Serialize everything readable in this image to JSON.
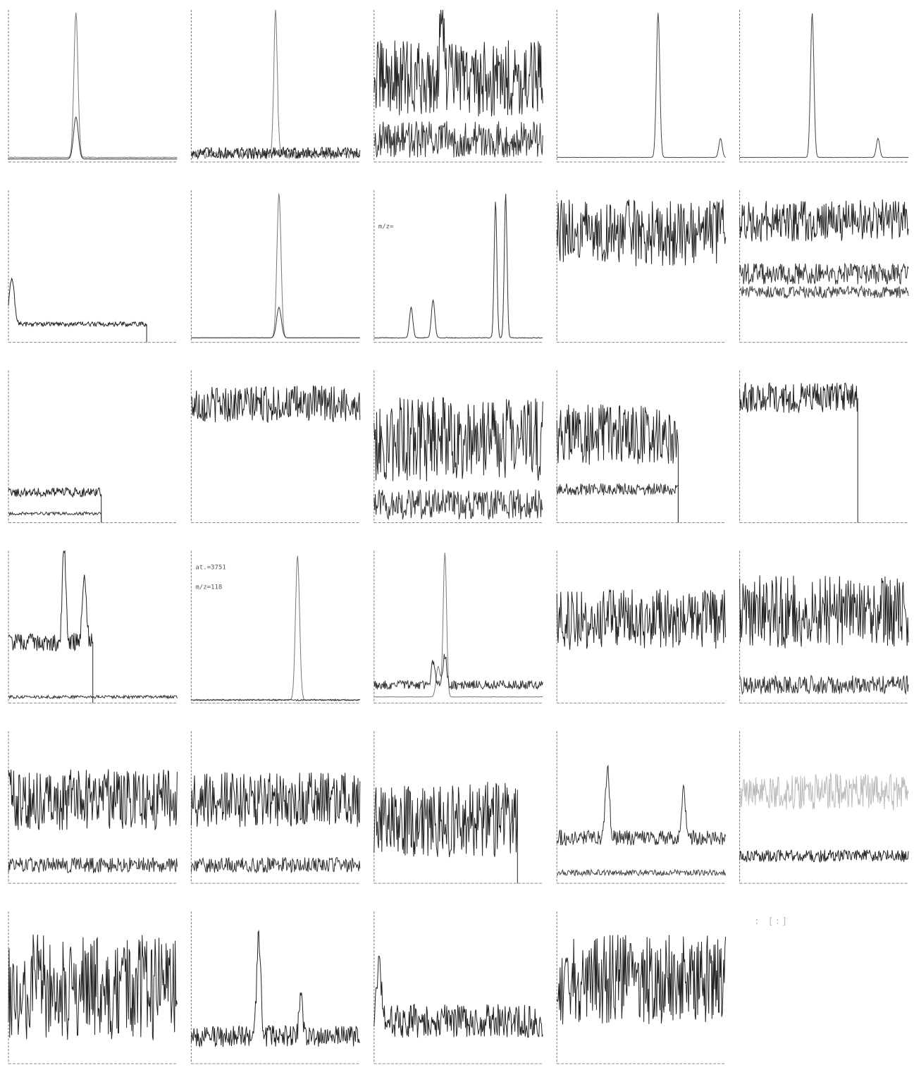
{
  "page": {
    "title": "",
    "stray_marks": ": [:]"
  },
  "chart_data": [
    {
      "type": "line",
      "labels": [
        "",
        "",
        "",
        ""
      ],
      "xticks": [
        "",
        "",
        "",
        ""
      ],
      "series": [
        {
          "kind": "peak",
          "peaks": [
            [
              0.4,
              190,
              0.012
            ]
          ],
          "noise": 0.5,
          "base": 0.03,
          "color": "#777"
        },
        {
          "kind": "peak",
          "peaks": [
            [
              0.4,
              55,
              0.014
            ]
          ],
          "noise": 0.2,
          "base": 0.02,
          "color": "#333"
        }
      ]
    },
    {
      "type": "line",
      "labels": [
        "",
        "",
        "",
        ""
      ],
      "xticks": [
        "",
        "",
        "",
        ""
      ],
      "series": [
        {
          "kind": "peak",
          "peaks": [
            [
              0.5,
              190,
              0.01
            ]
          ],
          "noise": 6,
          "base": 0.05,
          "color": "#777"
        },
        {
          "kind": "noise",
          "level": 0.06,
          "noise": 0.04,
          "color": "#222"
        }
      ]
    },
    {
      "type": "line",
      "labels": [
        "",
        "",
        "",
        ""
      ],
      "xticks": [
        "",
        "",
        "",
        ""
      ],
      "series": [
        {
          "kind": "noise",
          "level": 0.55,
          "noise": 0.25,
          "color": "#222",
          "peaks": [
            [
              0.4,
              120,
              0.01
            ]
          ]
        },
        {
          "kind": "noise",
          "level": 0.15,
          "noise": 0.12,
          "color": "#333"
        }
      ]
    },
    {
      "type": "line",
      "labels": [
        "",
        "",
        "",
        ""
      ],
      "xticks": [
        "",
        "",
        "",
        ""
      ],
      "series": [
        {
          "kind": "peak",
          "peaks": [
            [
              0.6,
              190,
              0.01
            ],
            [
              0.97,
              25,
              0.01
            ]
          ],
          "noise": 0.2,
          "base": 0.03,
          "color": "#444"
        }
      ]
    },
    {
      "type": "line",
      "labels": [
        "",
        "",
        "",
        ""
      ],
      "xticks": [
        "",
        "",
        "",
        ""
      ],
      "series": [
        {
          "kind": "peak",
          "peaks": [
            [
              0.43,
              190,
              0.01
            ],
            [
              0.82,
              25,
              0.01
            ]
          ],
          "noise": 0.2,
          "base": 0.03,
          "color": "#444"
        }
      ]
    },
    {
      "type": "line",
      "labels": [
        "",
        "",
        "",
        ""
      ],
      "xticks": [
        "",
        "",
        "",
        ""
      ],
      "cut": 0.82,
      "series": [
        {
          "kind": "peak",
          "peaks": [
            [
              0.02,
              60,
              0.015
            ]
          ],
          "noise": 3,
          "base": 0.12,
          "color": "#222"
        }
      ]
    },
    {
      "type": "line",
      "labels": [
        "",
        "",
        "",
        ""
      ],
      "xticks": [
        "",
        "",
        "",
        ""
      ],
      "series": [
        {
          "kind": "peak",
          "peaks": [
            [
              0.52,
              190,
              0.012
            ]
          ],
          "noise": 0.2,
          "base": 0.03,
          "color": "#777"
        },
        {
          "kind": "peak",
          "peaks": [
            [
              0.52,
              40,
              0.014
            ]
          ],
          "noise": 0.2,
          "base": 0.03,
          "color": "#333"
        }
      ]
    },
    {
      "type": "line",
      "labels": [
        "",
        "",
        "",
        "m/z= "
      ],
      "xticks": [
        "",
        "",
        "",
        ""
      ],
      "series": [
        {
          "kind": "peak",
          "peaks": [
            [
              0.22,
              40,
              0.01
            ],
            [
              0.35,
              50,
              0.01
            ],
            [
              0.72,
              180,
              0.008
            ],
            [
              0.78,
              190,
              0.008
            ]
          ],
          "noise": 0.5,
          "base": 0.03,
          "color": "#333"
        }
      ]
    },
    {
      "type": "line",
      "labels": [
        "",
        "",
        "",
        ""
      ],
      "xticks": [
        "",
        "",
        "",
        ""
      ],
      "series": [
        {
          "kind": "noise",
          "level": 0.72,
          "noise": 0.22,
          "color": "#222"
        }
      ]
    },
    {
      "type": "line",
      "labels": [
        "",
        "",
        "",
        ""
      ],
      "xticks": [
        "",
        "",
        "",
        ""
      ],
      "series": [
        {
          "kind": "noise",
          "level": 0.8,
          "noise": 0.14,
          "color": "#222"
        },
        {
          "kind": "noise",
          "level": 0.45,
          "noise": 0.07,
          "color": "#333"
        },
        {
          "kind": "noise",
          "level": 0.33,
          "noise": 0.04,
          "color": "#444"
        }
      ]
    },
    {
      "type": "line",
      "labels": [
        "",
        "",
        "",
        ""
      ],
      "xticks": [
        "",
        "",
        "",
        ""
      ],
      "cut": 0.55,
      "series": [
        {
          "kind": "noise",
          "level": 0.2,
          "noise": 0.03,
          "color": "#222"
        },
        {
          "kind": "noise",
          "level": 0.06,
          "noise": 0.01,
          "color": "#333"
        }
      ]
    },
    {
      "type": "line",
      "labels": [
        "",
        "",
        "",
        ""
      ],
      "xticks": [
        "",
        "",
        "",
        ""
      ],
      "series": [
        {
          "kind": "noise",
          "level": 0.78,
          "noise": 0.12,
          "color": "#222"
        }
      ]
    },
    {
      "type": "line",
      "labels": [
        "",
        "",
        "",
        ""
      ],
      "xticks": [
        "",
        "",
        "",
        ""
      ],
      "series": [
        {
          "kind": "noise",
          "level": 0.55,
          "noise": 0.28,
          "color": "#222"
        },
        {
          "kind": "noise",
          "level": 0.12,
          "noise": 0.1,
          "color": "#333"
        }
      ]
    },
    {
      "type": "line",
      "labels": [
        "",
        "",
        "",
        ""
      ],
      "xticks": [
        "",
        "",
        "",
        ""
      ],
      "cut": 0.72,
      "series": [
        {
          "kind": "noise",
          "level": 0.58,
          "noise": 0.2,
          "color": "#222"
        },
        {
          "kind": "noise",
          "level": 0.22,
          "noise": 0.04,
          "color": "#333"
        }
      ]
    },
    {
      "type": "line",
      "labels": [
        "",
        "",
        "",
        ""
      ],
      "xticks": [
        "",
        "",
        "",
        ""
      ],
      "cut": 0.7,
      "series": [
        {
          "kind": "noise",
          "level": 0.82,
          "noise": 0.1,
          "color": "#222"
        }
      ]
    },
    {
      "type": "line",
      "labels": [
        "",
        "",
        "",
        ""
      ],
      "xticks": [
        "",
        "",
        "",
        ""
      ],
      "series": [
        {
          "kind": "noise",
          "level": 0.4,
          "noise": 0.06,
          "color": "#222",
          "peaks": [
            [
              0.33,
              130,
              0.01
            ],
            [
              0.45,
              80,
              0.012
            ]
          ],
          "cut": 0.5
        },
        {
          "kind": "noise",
          "level": 0.04,
          "noise": 0.01,
          "color": "#333"
        }
      ]
    },
    {
      "type": "line",
      "labels": [
        "",
        "at.=3751",
        "",
        "m/z=118"
      ],
      "xticks": [
        "",
        "",
        "",
        ""
      ],
      "series": [
        {
          "kind": "peak",
          "peaks": [
            [
              0.63,
              190,
              0.012
            ]
          ],
          "noise": 0.3,
          "base": 0.02,
          "color": "#777"
        },
        {
          "kind": "noise",
          "level": 0.02,
          "noise": 0.005,
          "color": "#333"
        }
      ]
    },
    {
      "type": "line",
      "labels": [
        "",
        "",
        "",
        ""
      ],
      "xticks": [
        "",
        "",
        "",
        ""
      ],
      "series": [
        {
          "kind": "peak",
          "peaks": [
            [
              0.42,
              190,
              0.01
            ],
            [
              0.38,
              40,
              0.012
            ]
          ],
          "noise": 0.3,
          "base": 0.04,
          "color": "#777"
        },
        {
          "kind": "noise",
          "level": 0.12,
          "noise": 0.03,
          "color": "#333",
          "peaks": [
            [
              0.35,
              30,
              0.01
            ],
            [
              0.42,
              40,
              0.01
            ]
          ]
        }
      ]
    },
    {
      "type": "line",
      "labels": [
        "",
        "",
        "",
        ""
      ],
      "xticks": [
        "",
        "",
        "",
        ""
      ],
      "series": [
        {
          "kind": "noise",
          "level": 0.55,
          "noise": 0.2,
          "color": "#222"
        }
      ]
    },
    {
      "type": "line",
      "labels": [
        "",
        "",
        "",
        ""
      ],
      "xticks": [
        "",
        "",
        "",
        ""
      ],
      "series": [
        {
          "kind": "noise",
          "level": 0.6,
          "noise": 0.24,
          "color": "#222"
        },
        {
          "kind": "noise",
          "level": 0.12,
          "noise": 0.06,
          "color": "#333"
        }
      ]
    },
    {
      "type": "line",
      "labels": [
        "",
        "",
        "",
        ""
      ],
      "xticks": [
        "",
        "",
        "",
        ""
      ],
      "series": [
        {
          "kind": "noise",
          "level": 0.55,
          "noise": 0.2,
          "color": "#222"
        },
        {
          "kind": "noise",
          "level": 0.12,
          "noise": 0.05,
          "color": "#333"
        }
      ]
    },
    {
      "type": "line",
      "labels": [
        "",
        "",
        "",
        ""
      ],
      "xticks": [
        "",
        "",
        "",
        ""
      ],
      "series": [
        {
          "kind": "noise",
          "level": 0.55,
          "noise": 0.18,
          "color": "#222"
        },
        {
          "kind": "noise",
          "level": 0.12,
          "noise": 0.05,
          "color": "#333"
        }
      ]
    },
    {
      "type": "line",
      "labels": [
        "",
        "",
        "",
        ""
      ],
      "xticks": [
        "",
        "",
        "",
        ""
      ],
      "cut": 0.85,
      "series": [
        {
          "kind": "noise",
          "level": 0.42,
          "noise": 0.25,
          "color": "#222"
        }
      ]
    },
    {
      "type": "line",
      "labels": [
        "",
        "",
        "",
        ""
      ],
      "xticks": [
        "",
        "",
        "",
        ""
      ],
      "series": [
        {
          "kind": "noise",
          "level": 0.3,
          "noise": 0.05,
          "color": "#333",
          "peaks": [
            [
              0.3,
              90,
              0.012
            ],
            [
              0.75,
              60,
              0.012
            ]
          ]
        },
        {
          "kind": "noise",
          "level": 0.07,
          "noise": 0.02,
          "color": "#444"
        }
      ]
    },
    {
      "type": "line",
      "labels": [
        "",
        "",
        "",
        ""
      ],
      "xticks": [
        "",
        "",
        "",
        ""
      ],
      "series": [
        {
          "kind": "noise",
          "level": 0.6,
          "noise": 0.12,
          "color": "#bbb"
        },
        {
          "kind": "noise",
          "level": 0.18,
          "noise": 0.04,
          "color": "#222"
        }
      ]
    },
    {
      "type": "line",
      "labels": [
        "",
        "",
        "",
        ""
      ],
      "xticks": [
        "",
        "",
        "",
        ""
      ],
      "series": [
        {
          "kind": "noise",
          "level": 0.5,
          "noise": 0.35,
          "color": "#222"
        }
      ]
    },
    {
      "type": "line",
      "labels": [
        "",
        "",
        "",
        ""
      ],
      "xticks": [
        "",
        "",
        "",
        ""
      ],
      "series": [
        {
          "kind": "noise",
          "level": 0.18,
          "noise": 0.07,
          "color": "#222",
          "peaks": [
            [
              0.4,
              130,
              0.012
            ],
            [
              0.65,
              60,
              0.01
            ]
          ]
        }
      ]
    },
    {
      "type": "line",
      "labels": [
        "",
        "",
        "",
        ""
      ],
      "xticks": [
        "",
        "",
        "",
        ""
      ],
      "series": [
        {
          "kind": "noise",
          "level": 0.28,
          "noise": 0.11,
          "color": "#222",
          "peaks": [
            [
              0.03,
              90,
              0.012
            ]
          ]
        }
      ]
    },
    {
      "type": "line",
      "labels": [
        "",
        "",
        "",
        ""
      ],
      "xticks": [
        "",
        "",
        "",
        ""
      ],
      "series": [
        {
          "kind": "noise",
          "level": 0.55,
          "noise": 0.3,
          "color": "#222"
        }
      ]
    }
  ]
}
